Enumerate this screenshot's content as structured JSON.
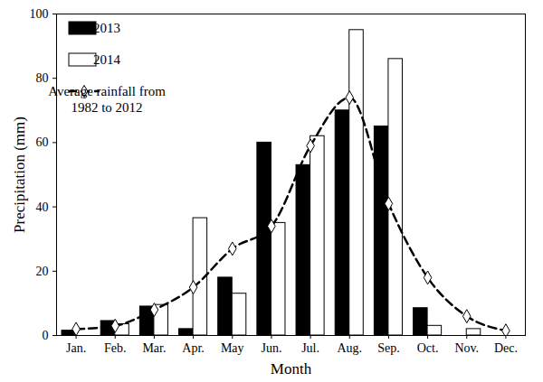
{
  "chart_data": {
    "type": "bar",
    "x_label": "Month",
    "y_label": "Precipitation (mm)",
    "categories": [
      "Jan.",
      "Feb.",
      "Mar.",
      "Apr.",
      "May",
      "Jun.",
      "Jul.",
      "Aug.",
      "Sep.",
      "Oct.",
      "Nov.",
      "Dec."
    ],
    "series": [
      {
        "name": "2013",
        "type": "bar",
        "color": "#000000",
        "values": [
          1.5,
          4.5,
          9,
          2,
          18,
          60,
          53,
          70,
          65,
          8.5,
          0,
          0
        ]
      },
      {
        "name": "2014",
        "type": "bar",
        "color": "#ffffff",
        "values": [
          0,
          3.5,
          9.5,
          36.5,
          13,
          35,
          62,
          95,
          86,
          3,
          2,
          0
        ]
      },
      {
        "name": "Average rainfall from 1982 to 2012",
        "type": "line",
        "color": "#000000",
        "marker": "diamond",
        "line_style": "dashed",
        "values": [
          2,
          3,
          8,
          15,
          27,
          34,
          59,
          74,
          41,
          18,
          6,
          1.5
        ]
      }
    ],
    "ylim": [
      0,
      100
    ],
    "yticks": [
      0,
      20,
      40,
      60,
      80,
      100
    ],
    "legend": "upper left",
    "grid": false
  }
}
